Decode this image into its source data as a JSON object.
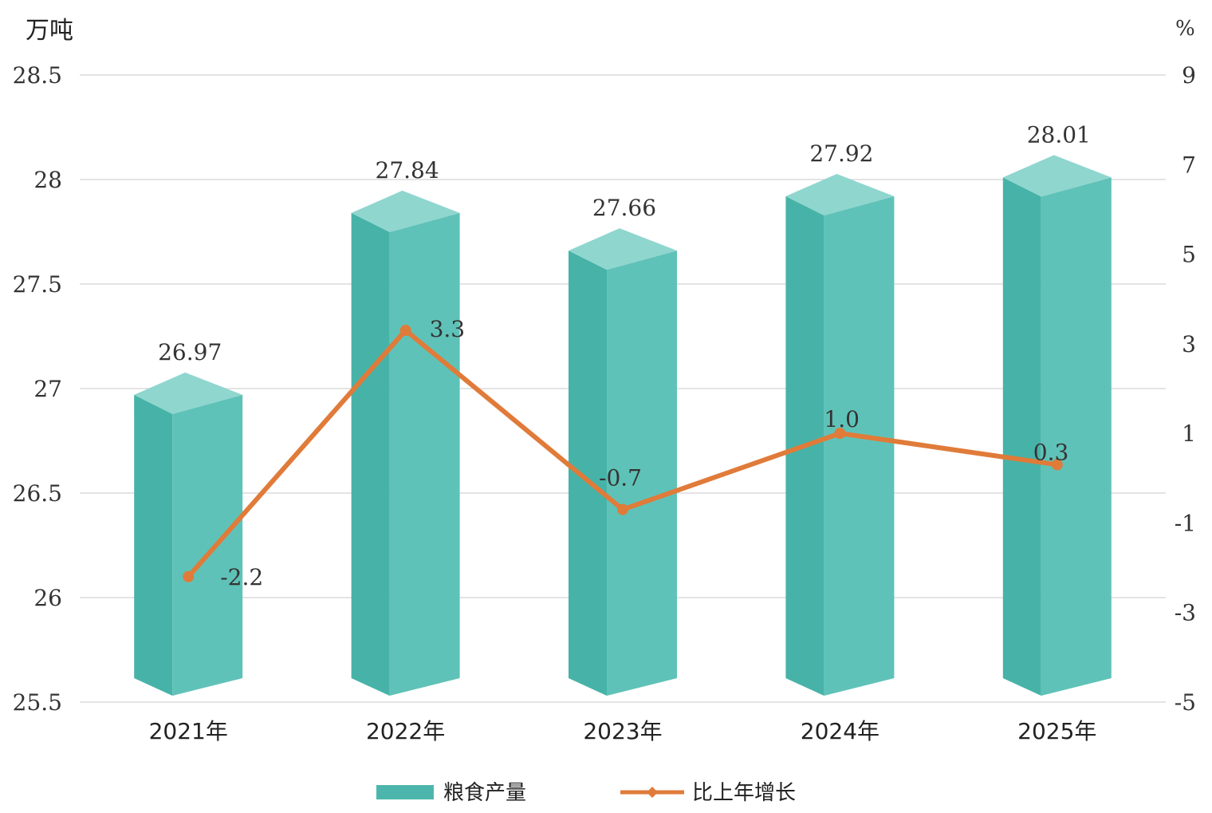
{
  "chart_data": {
    "type": "bar",
    "title": "",
    "categories": [
      "2021年",
      "2022年",
      "2023年",
      "2024年",
      "2025年"
    ],
    "left_axis": {
      "unit": "万吨",
      "ylim": [
        25.5,
        28.5
      ],
      "ticks": [
        "28.5",
        "28",
        "27.5",
        "27",
        "26.5",
        "26",
        "25.5"
      ]
    },
    "right_axis": {
      "unit": "%",
      "ylim": [
        -5,
        9
      ],
      "ticks": [
        "9",
        "7",
        "5",
        "3",
        "1",
        "-1",
        "-3",
        "-5"
      ]
    },
    "series": [
      {
        "name": "粮食产量",
        "type": "bar",
        "axis": "left",
        "values": [
          26.97,
          27.84,
          27.66,
          27.92,
          28.01
        ],
        "labels": [
          "26.97",
          "27.84",
          "27.66",
          "27.92",
          "28.01"
        ],
        "color": "#4db6ac"
      },
      {
        "name": "比上年增长",
        "type": "line",
        "axis": "right",
        "values": [
          -2.2,
          3.3,
          -0.7,
          1.0,
          0.3
        ],
        "labels": [
          "-2.2",
          "3.3",
          "-0.7",
          "1.0",
          "0.3"
        ],
        "color": "#e07b39"
      }
    ],
    "grid": true,
    "legend": "bottom-center"
  }
}
